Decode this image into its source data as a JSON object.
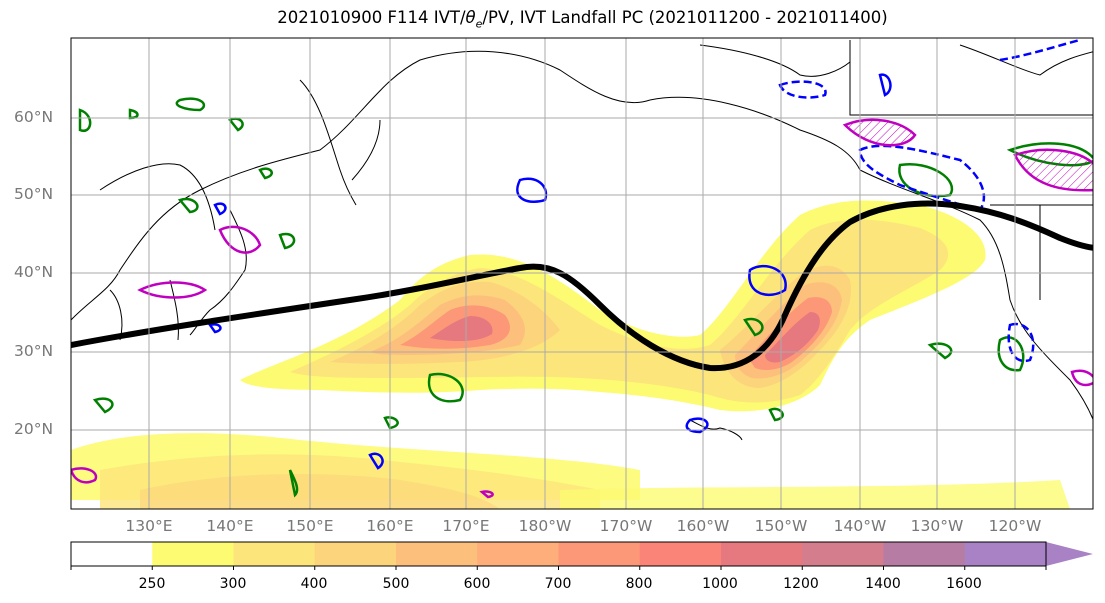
{
  "title": {
    "text_pre": "2021010900 F114 IVT/",
    "theta": "θ",
    "sub_e": "e",
    "text_post": "/PV, IVT Landfall PC (2021011200 - 2021011400)"
  },
  "lat_labels": [
    "60°N",
    "50°N",
    "40°N",
    "30°N",
    "20°N"
  ],
  "lon_labels": [
    "130°E",
    "140°E",
    "150°E",
    "160°E",
    "170°E",
    "180°W",
    "170°W",
    "160°W",
    "150°W",
    "140°W",
    "130°W",
    "120°W"
  ],
  "colorbar": {
    "levels": [
      "250",
      "300",
      "400",
      "500",
      "600",
      "700",
      "800",
      "1000",
      "1200",
      "1400",
      "1600"
    ],
    "colors": [
      "#ffffff",
      "#fdfb72",
      "#fce57a",
      "#fcd47c",
      "#fcc07c",
      "#fdae7a",
      "#fc9877",
      "#fb8478",
      "#e6787f",
      "#d37d8d",
      "#b77ca3",
      "#a882c4"
    ]
  },
  "overlays": {
    "pc_line_color": "#000000",
    "pv_color": "#008000",
    "theta_color": "#0000ff",
    "magenta_color": "#c000c0"
  }
}
